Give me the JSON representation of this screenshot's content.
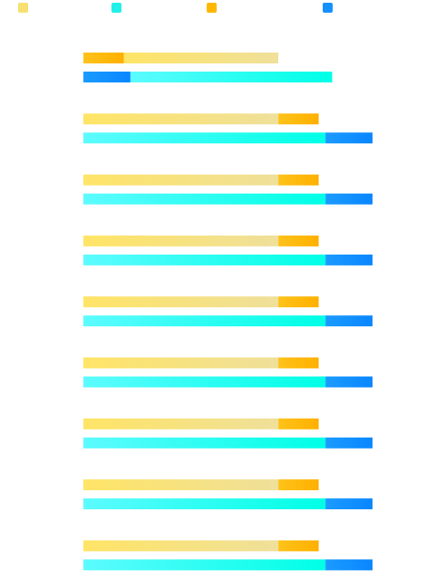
{
  "chart_data": {
    "type": "bar",
    "orientation": "horizontal",
    "stacked": true,
    "title": "",
    "xlabel": "",
    "ylabel": "",
    "legend": {
      "placement": "top-left",
      "entries": [
        {
          "color": "#f8e070"
        },
        {
          "color": "#20f0e8"
        },
        {
          "color": "#ffb700"
        },
        {
          "color": "#1490ff"
        }
      ]
    },
    "categories": [
      "",
      "",
      "",
      "",
      "",
      "",
      "",
      "",
      ""
    ],
    "groups": [
      {
        "bars": [
          [
            {
              "value": 0.6,
              "color": "#ffb700"
            },
            {
              "value": 2.3,
              "color": "#f8e070"
            }
          ],
          [
            {
              "value": 0.7,
              "color": "#1490ff"
            },
            {
              "value": 3.0,
              "color": "#20f0e8"
            }
          ]
        ]
      },
      {
        "bars": [
          [
            {
              "value": 2.9,
              "color": "#f8e070"
            },
            {
              "value": 0.6,
              "color": "#ffb700"
            }
          ],
          [
            {
              "value": 3.6,
              "color": "#20f0e8"
            },
            {
              "value": 0.7,
              "color": "#1490ff"
            }
          ]
        ]
      },
      {
        "bars": [
          [
            {
              "value": 2.9,
              "color": "#f8e070"
            },
            {
              "value": 0.6,
              "color": "#ffb700"
            }
          ],
          [
            {
              "value": 3.6,
              "color": "#20f0e8"
            },
            {
              "value": 0.7,
              "color": "#1490ff"
            }
          ]
        ]
      },
      {
        "bars": [
          [
            {
              "value": 2.9,
              "color": "#f8e070"
            },
            {
              "value": 0.6,
              "color": "#ffb700"
            }
          ],
          [
            {
              "value": 3.6,
              "color": "#20f0e8"
            },
            {
              "value": 0.7,
              "color": "#1490ff"
            }
          ]
        ]
      },
      {
        "bars": [
          [
            {
              "value": 2.9,
              "color": "#f8e070"
            },
            {
              "value": 0.6,
              "color": "#ffb700"
            }
          ],
          [
            {
              "value": 3.6,
              "color": "#20f0e8"
            },
            {
              "value": 0.7,
              "color": "#1490ff"
            }
          ]
        ]
      },
      {
        "bars": [
          [
            {
              "value": 2.9,
              "color": "#f8e070"
            },
            {
              "value": 0.6,
              "color": "#ffb700"
            }
          ],
          [
            {
              "value": 3.6,
              "color": "#20f0e8"
            },
            {
              "value": 0.7,
              "color": "#1490ff"
            }
          ]
        ]
      },
      {
        "bars": [
          [
            {
              "value": 2.9,
              "color": "#f8e070"
            },
            {
              "value": 0.6,
              "color": "#ffb700"
            }
          ],
          [
            {
              "value": 3.6,
              "color": "#20f0e8"
            },
            {
              "value": 0.7,
              "color": "#1490ff"
            }
          ]
        ]
      },
      {
        "bars": [
          [
            {
              "value": 2.9,
              "color": "#f8e070"
            },
            {
              "value": 0.6,
              "color": "#ffb700"
            }
          ],
          [
            {
              "value": 3.6,
              "color": "#20f0e8"
            },
            {
              "value": 0.7,
              "color": "#1490ff"
            }
          ]
        ]
      },
      {
        "bars": [
          [
            {
              "value": 2.9,
              "color": "#f8e070"
            },
            {
              "value": 0.6,
              "color": "#ffb700"
            }
          ],
          [
            {
              "value": 3.6,
              "color": "#20f0e8"
            },
            {
              "value": 0.7,
              "color": "#1490ff"
            }
          ]
        ]
      }
    ],
    "xlim": [
      0,
      4.3
    ],
    "grid": false
  }
}
